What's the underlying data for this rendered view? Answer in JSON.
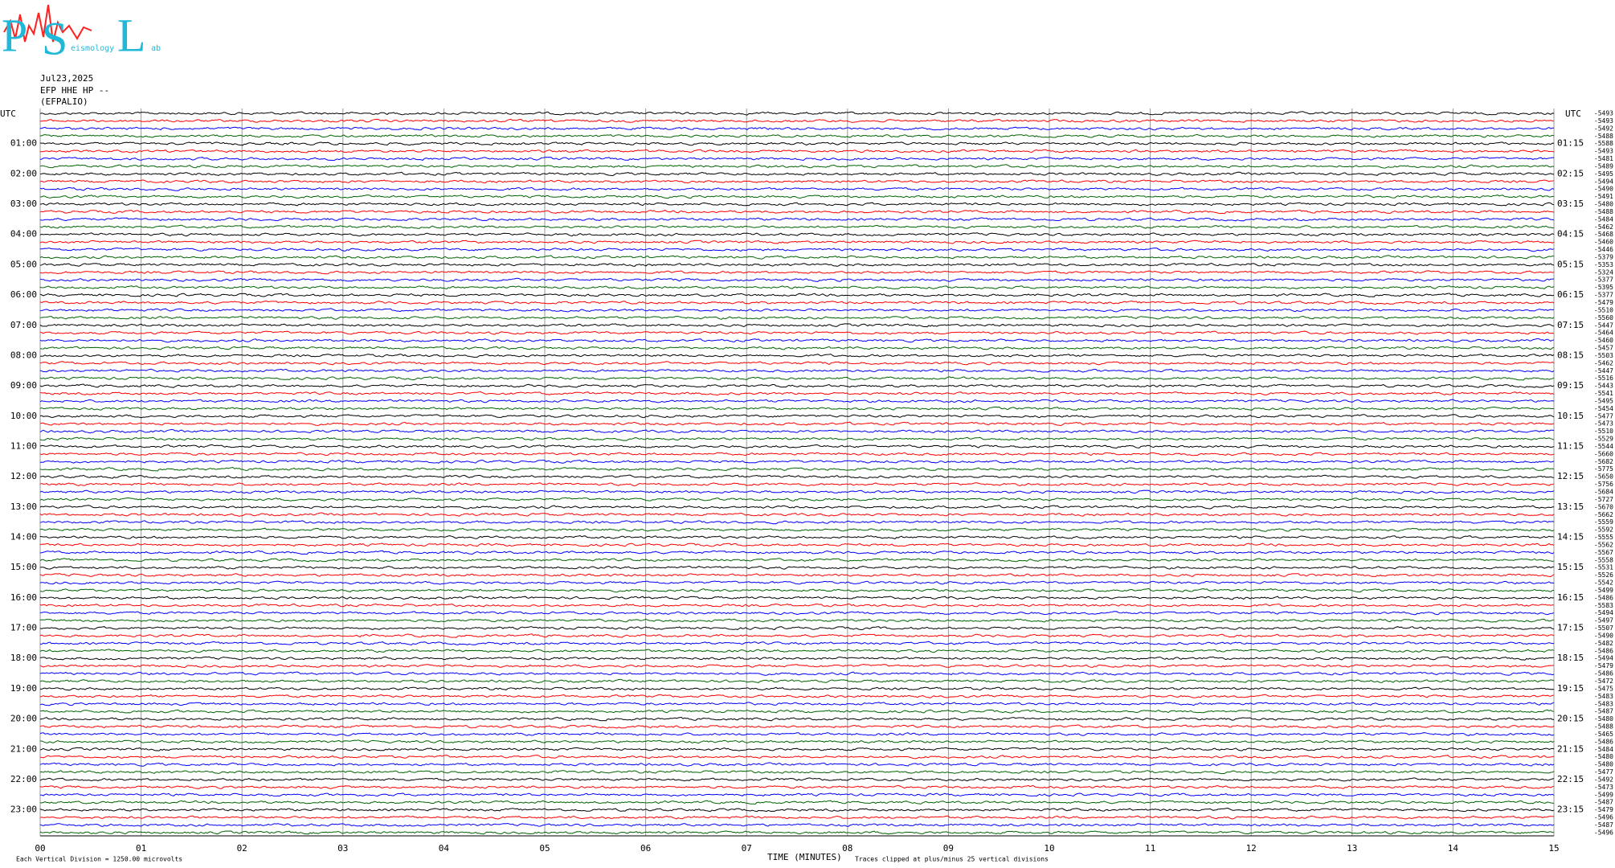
{
  "logo": {
    "letters": [
      "P",
      "S",
      "L"
    ],
    "small": [
      "eismology",
      "ab"
    ]
  },
  "header": {
    "date": "Jul23,2025",
    "channel": "EFP HHE HP --",
    "station": "(EFPALIO)"
  },
  "left_labels": {
    "title": "UTC",
    "hours": [
      "01:00",
      "02:00",
      "03:00",
      "04:00",
      "05:00",
      "06:00",
      "07:00",
      "08:00",
      "09:00",
      "10:00",
      "11:00",
      "12:00",
      "13:00",
      "14:00",
      "15:00",
      "16:00",
      "17:00",
      "18:00",
      "19:00",
      "20:00",
      "21:00",
      "22:00",
      "23:00"
    ]
  },
  "right_labels": {
    "title": "UTC",
    "times": [
      "01:15",
      "02:15",
      "03:15",
      "04:15",
      "05:15",
      "06:15",
      "07:15",
      "08:15",
      "09:15",
      "10:15",
      "11:15",
      "12:15",
      "13:15",
      "14:15",
      "15:15",
      "16:15",
      "17:15",
      "18:15",
      "19:15",
      "20:15",
      "21:15",
      "22:15",
      "23:15"
    ],
    "offsets": [
      "-5493",
      "-5493",
      "-5492",
      "-5488",
      "-5588",
      "-5493",
      "-5481",
      "-5489",
      "-5495",
      "-5494",
      "-5490",
      "-5491",
      "-5480",
      "-5488",
      "-5484",
      "-5462",
      "-5468",
      "-5460",
      "-5446",
      "-5379",
      "-5353",
      "-5324",
      "-5377",
      "-5395",
      "-5377",
      "-5479",
      "-5510",
      "-5560",
      "-5447",
      "-5464",
      "-5460",
      "-5457",
      "-5503",
      "-5462",
      "-5447",
      "-5516",
      "-5443",
      "-5541",
      "-5495",
      "-5454",
      "-5477",
      "-5473",
      "-5510",
      "-5529",
      "-5544",
      "-5660",
      "-5682",
      "-5775",
      "-5650",
      "-5756",
      "-5684",
      "-5727",
      "-5670",
      "-5662",
      "-5559",
      "-5592",
      "-5555",
      "-5562",
      "-5567",
      "-5558",
      "-5531",
      "-5526",
      "-5542",
      "-5499",
      "-5486",
      "-5583",
      "-5494",
      "-5497",
      "-5507",
      "-5490",
      "-5482",
      "-5486",
      "-5494",
      "-5479",
      "-5486",
      "-5472",
      "-5475",
      "-5483",
      "-5483",
      "-5487",
      "-5480",
      "-5488",
      "-5465",
      "-5486",
      "-5484",
      "-5480",
      "-5480",
      "-5477",
      "-5492",
      "-5473",
      "-5499",
      "-5487",
      "-5479",
      "-5496",
      "-5487",
      "-5496"
    ]
  },
  "x_axis": {
    "ticks": [
      "00",
      "01",
      "02",
      "03",
      "04",
      "05",
      "06",
      "07",
      "08",
      "09",
      "10",
      "11",
      "12",
      "13",
      "14",
      "15"
    ],
    "title": "TIME (MINUTES)"
  },
  "footer": {
    "scale": "Each Vertical Division = 1250.00 microvolts",
    "clip": "Traces clipped at plus/minus 25 vertical divisions"
  },
  "trace_colors": [
    "#000000",
    "#ff0000",
    "#0000ff",
    "#006400"
  ]
}
